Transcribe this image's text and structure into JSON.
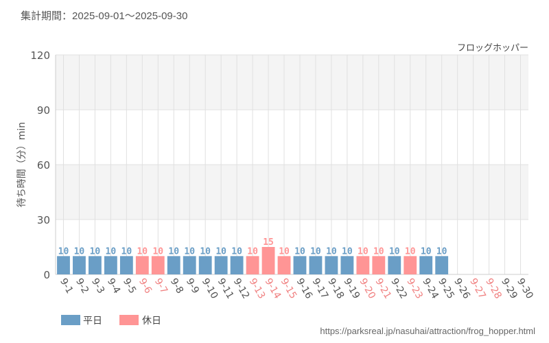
{
  "period_label": "集計期間：2025-09-01～2025-09-30",
  "attraction_name": "フロッグホッパー",
  "source_url": "https://parksreal.jp/nasuhai/attraction/frog_hopper.html",
  "colors": {
    "weekday": "#6a9ec6",
    "holiday": "#ff9595",
    "axis_text": "#555555",
    "grid": "#e0e0e0",
    "band": "#f4f4f4"
  },
  "chart_data": {
    "type": "bar",
    "title": "",
    "xlabel": "",
    "ylabel": "待ち時間（分）min",
    "ylim": [
      0,
      120
    ],
    "yticks": [
      0,
      30,
      60,
      90,
      120
    ],
    "grid": true,
    "legend_position": "bottom-left",
    "categories": [
      "9-1",
      "9-2",
      "9-3",
      "9-4",
      "9-5",
      "9-6",
      "9-7",
      "9-8",
      "9-9",
      "9-10",
      "9-11",
      "9-12",
      "9-13",
      "9-14",
      "9-15",
      "9-16",
      "9-17",
      "9-18",
      "9-19",
      "9-20",
      "9-21",
      "9-22",
      "9-23",
      "9-24",
      "9-25",
      "9-26",
      "9-27",
      "9-28",
      "9-29",
      "9-30"
    ],
    "values": [
      10,
      10,
      10,
      10,
      10,
      10,
      10,
      10,
      10,
      10,
      10,
      10,
      10,
      15,
      10,
      10,
      10,
      10,
      10,
      10,
      10,
      10,
      10,
      10,
      10,
      null,
      null,
      null,
      null,
      null
    ],
    "day_type": [
      "weekday",
      "weekday",
      "weekday",
      "weekday",
      "weekday",
      "holiday",
      "holiday",
      "weekday",
      "weekday",
      "weekday",
      "weekday",
      "weekday",
      "holiday",
      "holiday",
      "holiday",
      "weekday",
      "weekday",
      "weekday",
      "weekday",
      "holiday",
      "holiday",
      "weekday",
      "holiday",
      "weekday",
      "weekday",
      "weekday",
      "holiday",
      "holiday",
      "weekday",
      "weekday"
    ],
    "series": [
      {
        "name": "平日",
        "key": "weekday"
      },
      {
        "name": "休日",
        "key": "holiday"
      }
    ]
  }
}
